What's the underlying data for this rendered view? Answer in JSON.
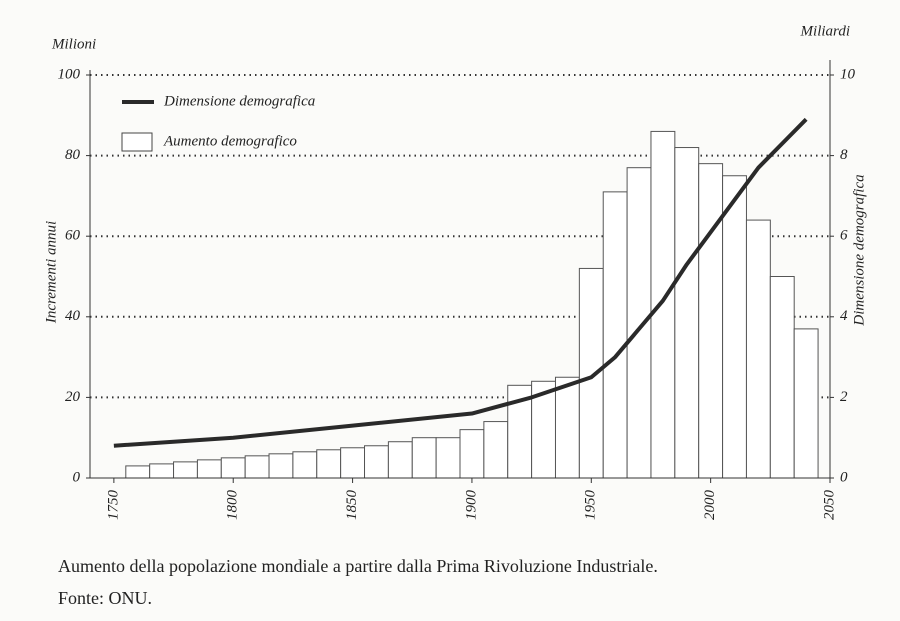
{
  "chart_data": {
    "type": "combo",
    "y_unit_label": "Milioni",
    "y2_unit_label": "Miliardi",
    "ylabel": "Incrementi annui",
    "y2label": "Dimensione demografica",
    "xlim": [
      1740,
      2050
    ],
    "xticks": [
      1750,
      1800,
      1850,
      1900,
      1950,
      2000,
      2050
    ],
    "ylim": [
      0,
      100
    ],
    "yticks": [
      0,
      20,
      40,
      60,
      80,
      100
    ],
    "y2lim": [
      0,
      10
    ],
    "y2ticks": [
      0,
      2,
      4,
      6,
      8,
      10
    ],
    "grid": true,
    "legend": "upper left",
    "series": [
      {
        "name": "Dimensione demografica",
        "type": "line",
        "axis": "y2",
        "color": "#2a2a2a",
        "x": [
          1750,
          1800,
          1850,
          1900,
          1925,
          1950,
          1960,
          1970,
          1980,
          1990,
          2000,
          2010,
          2020,
          2030,
          2040
        ],
        "values": [
          0.8,
          1.0,
          1.3,
          1.6,
          2.0,
          2.5,
          3.0,
          3.7,
          4.4,
          5.3,
          6.1,
          6.9,
          7.7,
          8.3,
          8.9
        ]
      },
      {
        "name": "Aumento demografico",
        "type": "bar",
        "color": "#ffffff",
        "x": [
          1760,
          1770,
          1780,
          1790,
          1800,
          1810,
          1820,
          1830,
          1840,
          1850,
          1860,
          1870,
          1880,
          1890,
          1900,
          1910,
          1920,
          1930,
          1940,
          1950,
          1960,
          1970,
          1980,
          1990,
          2000,
          2010,
          2020,
          2030,
          2040
        ],
        "width": 10,
        "values": [
          3,
          3.5,
          4,
          4.5,
          5,
          5.5,
          6,
          6.5,
          7,
          7.5,
          8,
          9,
          10,
          10,
          12,
          14,
          23,
          24,
          25,
          52,
          71,
          77,
          86,
          82,
          78,
          75,
          64,
          50,
          37
        ]
      }
    ]
  },
  "caption": {
    "text": "Aumento della popolazione mondiale a partire dalla Prima Rivoluzione Industriale.",
    "source": "Fonte: ONU."
  }
}
